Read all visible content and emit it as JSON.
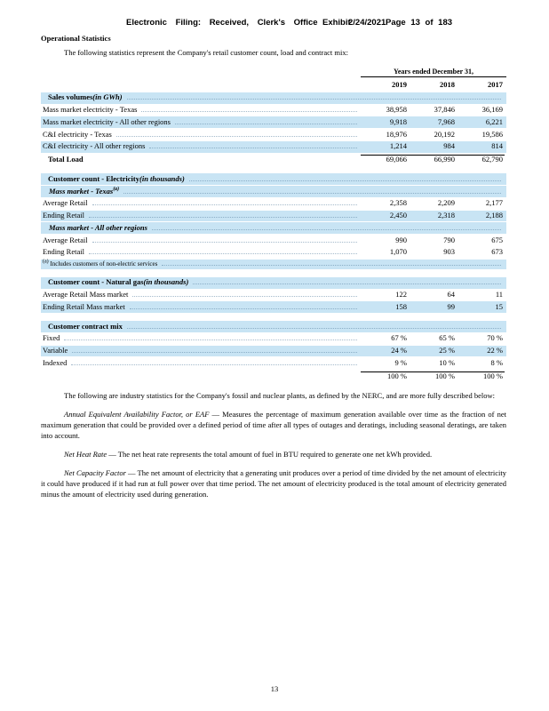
{
  "stamp": {
    "part1": "Electronic Filing: Received, Clerk's Office",
    "exhibit": "Exhibit",
    "date": "2/24/2021",
    "page": "Page 13 of 183"
  },
  "title": "Operational Statistics",
  "intro": "The following statistics represent the Company's retail customer count, load and contract mix:",
  "table": {
    "years_header": "Years ended December 31,",
    "columns": [
      "2019",
      "2018",
      "2017"
    ],
    "sales": {
      "title": "Sales volumes ",
      "note": "(in GWh)",
      "rows": [
        {
          "label": "Mass market electricity - Texas",
          "values": [
            "38,958",
            "37,846",
            "36,169"
          ]
        },
        {
          "label": "Mass market electricity - All other regions",
          "values": [
            "9,918",
            "7,968",
            "6,221"
          ]
        },
        {
          "label": "C&I electricity - Texas",
          "values": [
            "18,976",
            "20,192",
            "19,586"
          ]
        },
        {
          "label": "C&I electricity - All other regions",
          "values": [
            "1,214",
            "984",
            "814"
          ]
        }
      ],
      "total": {
        "label": "Total Load",
        "values": [
          "69,066",
          "66,990",
          "62,790"
        ]
      }
    },
    "electricity": {
      "title": "Customer count - Electricity ",
      "note": "(in thousands)",
      "texas": {
        "subtitle": "Mass market - Texas",
        "sup": "(a)",
        "rows": [
          {
            "label": "Average Retail",
            "values": [
              "2,358",
              "2,209",
              "2,177"
            ]
          },
          {
            "label": "Ending Retail",
            "values": [
              "2,450",
              "2,318",
              "2,188"
            ]
          }
        ]
      },
      "other": {
        "subtitle": "Mass market - All other regions",
        "rows": [
          {
            "label": "Average Retail",
            "values": [
              "990",
              "790",
              "675"
            ]
          },
          {
            "label": "Ending Retail",
            "values": [
              "1,070",
              "903",
              "673"
            ]
          }
        ]
      },
      "footnote": {
        "sup": "(a)",
        "text": " Includes customers of non-electric services"
      }
    },
    "gas": {
      "title": "Customer count - Natural gas ",
      "note": "(in thousands)",
      "rows": [
        {
          "label": "Average Retail Mass market",
          "values": [
            "122",
            "64",
            "11"
          ]
        },
        {
          "label": "Ending Retail Mass market",
          "values": [
            "158",
            "99",
            "15"
          ]
        }
      ]
    },
    "contract": {
      "title": "Customer contract mix",
      "rows": [
        {
          "label": "Fixed",
          "values": [
            "67 %",
            "65 %",
            "70 %"
          ]
        },
        {
          "label": "Variable",
          "values": [
            "24 %",
            "25 %",
            "22 %"
          ]
        },
        {
          "label": "Indexed",
          "values": [
            "9 %",
            "10 %",
            "8 %"
          ]
        }
      ],
      "total": {
        "values": [
          "100 %",
          "100 %",
          "100 %"
        ]
      }
    }
  },
  "paragraphs": {
    "industry": "The following are industry statistics for the Company's fossil and nuclear plants, as defined by the NERC, and are more fully described below:",
    "eaf": {
      "lead": "Annual Equivalent Availability Factor, or EAF",
      "rest": " — Measures the percentage of maximum generation available over time as the fraction of net maximum generation that could be provided over a defined period of time after all types of outages and deratings, including seasonal deratings, are taken into account."
    },
    "heat_rate": {
      "lead": "Net Heat Rate",
      "rest": " — The net heat rate represents the total amount of fuel in BTU required to generate one net kWh provided."
    },
    "capacity_factor": {
      "lead": "Net Capacity Factor",
      "rest": " — The net amount of electricity that a generating unit produces over a period of time divided by the net amount of electricity it could have produced if it had run at full power over that time period. The net amount of electricity produced is the total amount of electricity generated minus the amount of electricity used during generation."
    }
  },
  "page_footer": "13"
}
